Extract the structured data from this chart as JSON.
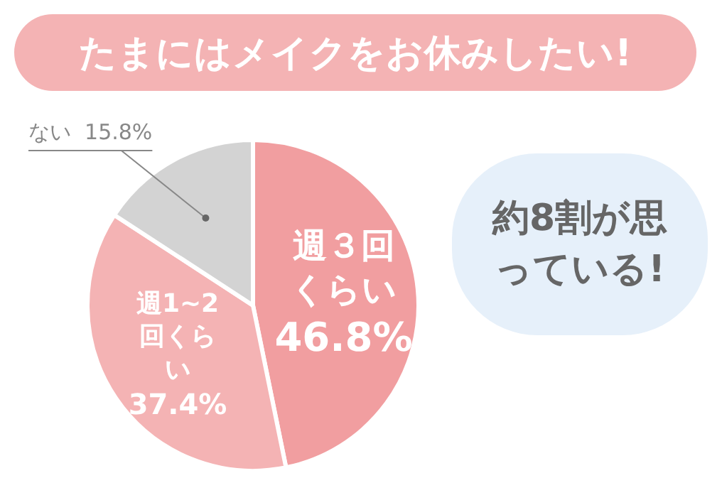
{
  "chart_data": {
    "type": "pie",
    "title": "たまにはメイクをお休みしたい!",
    "categories": [
      "週３回くらい",
      "週1~2回くらい",
      "ない"
    ],
    "values": [
      46.8,
      37.4,
      15.8
    ],
    "value_labels": [
      "46.8%",
      "37.4%",
      "15.8%"
    ],
    "colors": [
      "#f19ea0",
      "#f4b3b4",
      "#d3d3d3"
    ],
    "legend": false,
    "annotations": [
      "約8割が思っている!"
    ]
  }
}
